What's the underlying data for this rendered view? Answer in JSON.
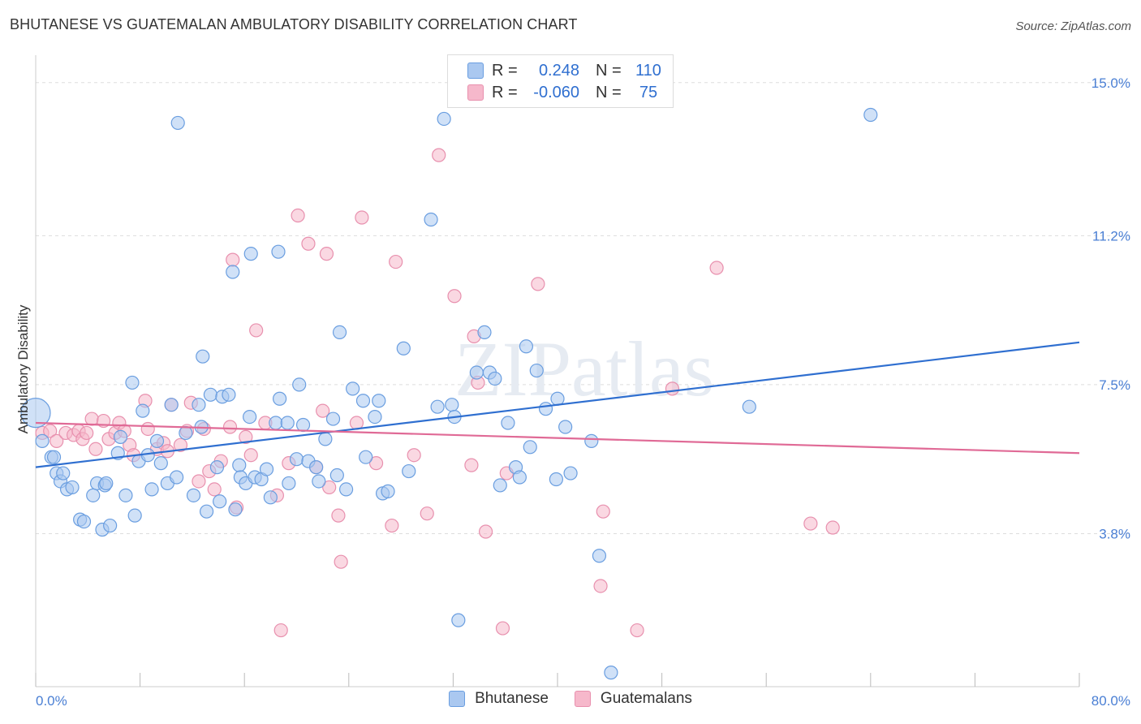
{
  "header": {
    "title": "BHUTANESE VS GUATEMALAN AMBULATORY DISABILITY CORRELATION CHART",
    "source": "Source: ZipAtlas.com"
  },
  "watermark": "ZIPatlas",
  "legend": {
    "r_label": "R =",
    "n_label": "N =",
    "rows": [
      {
        "r_value": "0.248",
        "n_value": "110"
      },
      {
        "r_value": "-0.060",
        "n_value": "75"
      }
    ]
  },
  "colors": {
    "blue_fill": "#aac8f0",
    "blue_stroke": "#6a9ee0",
    "blue_line": "#2f6fd0",
    "pink_fill": "#f6b8cb",
    "pink_stroke": "#e890ae",
    "pink_line": "#e06a96",
    "axis_label": "#4a7fd4",
    "grid": "#dddddd"
  },
  "chart_data": {
    "type": "scatter",
    "title": "BHUTANESE VS GUATEMALAN AMBULATORY DISABILITY CORRELATION CHART",
    "ylabel": "Ambulatory Disability",
    "xlabel": "",
    "xlim": [
      0,
      80
    ],
    "ylim": [
      0,
      15.5
    ],
    "x_tick_labels": [
      {
        "v": 0,
        "label": "0.0%"
      },
      {
        "v": 80,
        "label": "80.0%"
      }
    ],
    "y_tick_labels": [
      {
        "v": 3.8,
        "label": "3.8%"
      },
      {
        "v": 7.5,
        "label": "7.5%"
      },
      {
        "v": 11.2,
        "label": "11.2%"
      },
      {
        "v": 15.0,
        "label": "15.0%"
      }
    ],
    "grid": true,
    "legend_position": "bottom",
    "series": [
      {
        "name": "Bhutanese",
        "r": 0.248,
        "n": 110,
        "trend": [
          [
            0,
            5.45
          ],
          [
            80,
            8.55
          ]
        ],
        "points": [
          [
            0,
            6.8
          ],
          [
            0.5,
            6.1
          ],
          [
            1.2,
            5.7
          ],
          [
            1.4,
            5.7
          ],
          [
            1.6,
            5.3
          ],
          [
            1.9,
            5.1
          ],
          [
            2.1,
            5.3
          ],
          [
            2.4,
            4.9
          ],
          [
            2.8,
            4.95
          ],
          [
            3.4,
            4.15
          ],
          [
            3.7,
            4.1
          ],
          [
            4.4,
            4.75
          ],
          [
            4.7,
            5.05
          ],
          [
            5.1,
            3.9
          ],
          [
            5.3,
            5.0
          ],
          [
            5.4,
            5.05
          ],
          [
            5.7,
            4.0
          ],
          [
            6.3,
            5.8
          ],
          [
            6.5,
            6.2
          ],
          [
            6.9,
            4.75
          ],
          [
            7.4,
            7.55
          ],
          [
            7.6,
            4.25
          ],
          [
            7.9,
            5.6
          ],
          [
            8.2,
            6.85
          ],
          [
            8.6,
            5.75
          ],
          [
            8.9,
            4.9
          ],
          [
            9.3,
            6.1
          ],
          [
            9.6,
            5.55
          ],
          [
            10.1,
            5.05
          ],
          [
            10.4,
            7.0
          ],
          [
            10.8,
            5.2
          ],
          [
            10.9,
            14.0
          ],
          [
            11.5,
            6.3
          ],
          [
            12.1,
            4.75
          ],
          [
            12.5,
            7.0
          ],
          [
            12.7,
            6.45
          ],
          [
            12.8,
            8.2
          ],
          [
            13.1,
            4.35
          ],
          [
            13.4,
            7.25
          ],
          [
            13.9,
            5.45
          ],
          [
            14.1,
            4.6
          ],
          [
            14.3,
            7.2
          ],
          [
            14.8,
            7.25
          ],
          [
            15.1,
            10.3
          ],
          [
            15.3,
            4.4
          ],
          [
            15.6,
            5.5
          ],
          [
            15.7,
            5.2
          ],
          [
            16.1,
            5.05
          ],
          [
            16.4,
            6.7
          ],
          [
            16.5,
            10.75
          ],
          [
            16.8,
            5.2
          ],
          [
            17.3,
            5.15
          ],
          [
            17.7,
            5.4
          ],
          [
            18.0,
            4.7
          ],
          [
            18.4,
            6.55
          ],
          [
            18.6,
            10.8
          ],
          [
            18.7,
            7.15
          ],
          [
            19.3,
            6.55
          ],
          [
            19.4,
            5.05
          ],
          [
            20.0,
            5.65
          ],
          [
            20.2,
            7.5
          ],
          [
            20.5,
            6.5
          ],
          [
            20.9,
            5.6
          ],
          [
            21.5,
            5.45
          ],
          [
            21.7,
            5.1
          ],
          [
            22.2,
            6.15
          ],
          [
            22.8,
            6.65
          ],
          [
            23.1,
            5.25
          ],
          [
            23.3,
            8.8
          ],
          [
            23.8,
            4.9
          ],
          [
            24.3,
            7.4
          ],
          [
            25.1,
            7.1
          ],
          [
            25.3,
            5.7
          ],
          [
            26.0,
            6.7
          ],
          [
            26.3,
            7.1
          ],
          [
            26.6,
            4.8
          ],
          [
            27.0,
            4.85
          ],
          [
            28.2,
            8.4
          ],
          [
            28.6,
            5.35
          ],
          [
            30.3,
            11.6
          ],
          [
            30.8,
            6.95
          ],
          [
            31.3,
            14.1
          ],
          [
            31.9,
            7.0
          ],
          [
            32.1,
            6.7
          ],
          [
            32.4,
            1.65
          ],
          [
            33.8,
            7.8
          ],
          [
            34.4,
            8.8
          ],
          [
            34.8,
            7.8
          ],
          [
            35.2,
            7.65
          ],
          [
            35.6,
            5.0
          ],
          [
            36.2,
            6.55
          ],
          [
            36.8,
            5.45
          ],
          [
            37.1,
            5.2
          ],
          [
            37.6,
            8.45
          ],
          [
            37.9,
            5.95
          ],
          [
            38.4,
            7.85
          ],
          [
            39.1,
            6.9
          ],
          [
            39.9,
            5.15
          ],
          [
            40.0,
            7.15
          ],
          [
            40.6,
            6.45
          ],
          [
            41.0,
            5.3
          ],
          [
            42.6,
            6.1
          ],
          [
            43.2,
            3.25
          ],
          [
            44.1,
            0.35
          ],
          [
            54.7,
            6.95
          ],
          [
            64.0,
            14.2
          ]
        ]
      },
      {
        "name": "Guatemalans",
        "r": -0.06,
        "n": 75,
        "trend": [
          [
            0,
            6.55
          ],
          [
            80,
            5.8
          ]
        ],
        "points": [
          [
            0.5,
            6.3
          ],
          [
            1.1,
            6.35
          ],
          [
            1.6,
            6.1
          ],
          [
            2.3,
            6.3
          ],
          [
            2.9,
            6.25
          ],
          [
            3.3,
            6.35
          ],
          [
            3.6,
            6.15
          ],
          [
            3.9,
            6.3
          ],
          [
            4.3,
            6.65
          ],
          [
            4.6,
            5.9
          ],
          [
            5.2,
            6.6
          ],
          [
            5.6,
            6.15
          ],
          [
            6.1,
            6.3
          ],
          [
            6.4,
            6.55
          ],
          [
            6.8,
            6.35
          ],
          [
            7.2,
            6.0
          ],
          [
            7.5,
            5.75
          ],
          [
            8.4,
            7.1
          ],
          [
            8.6,
            6.4
          ],
          [
            9.3,
            5.9
          ],
          [
            9.8,
            6.05
          ],
          [
            10.1,
            5.85
          ],
          [
            10.4,
            7.0
          ],
          [
            11.1,
            6.0
          ],
          [
            11.6,
            6.35
          ],
          [
            11.9,
            7.05
          ],
          [
            12.5,
            5.1
          ],
          [
            12.9,
            6.4
          ],
          [
            13.3,
            5.35
          ],
          [
            13.7,
            4.9
          ],
          [
            14.2,
            5.6
          ],
          [
            14.9,
            6.45
          ],
          [
            15.1,
            10.6
          ],
          [
            15.4,
            4.45
          ],
          [
            16.1,
            6.2
          ],
          [
            16.5,
            5.75
          ],
          [
            16.9,
            8.85
          ],
          [
            17.6,
            6.55
          ],
          [
            18.5,
            4.75
          ],
          [
            18.8,
            1.4
          ],
          [
            19.4,
            5.55
          ],
          [
            20.1,
            11.7
          ],
          [
            20.9,
            11.0
          ],
          [
            21.5,
            5.45
          ],
          [
            22.0,
            6.85
          ],
          [
            22.3,
            10.75
          ],
          [
            22.5,
            4.95
          ],
          [
            23.2,
            4.25
          ],
          [
            23.4,
            3.1
          ],
          [
            24.6,
            6.55
          ],
          [
            25.0,
            11.65
          ],
          [
            26.1,
            5.55
          ],
          [
            27.3,
            4.0
          ],
          [
            27.6,
            10.55
          ],
          [
            29.0,
            5.75
          ],
          [
            30.0,
            4.3
          ],
          [
            30.9,
            13.2
          ],
          [
            32.1,
            9.7
          ],
          [
            33.4,
            5.5
          ],
          [
            33.6,
            8.7
          ],
          [
            33.9,
            7.55
          ],
          [
            34.5,
            3.85
          ],
          [
            35.8,
            1.45
          ],
          [
            36.1,
            5.3
          ],
          [
            38.5,
            10.0
          ],
          [
            43.3,
            2.5
          ],
          [
            43.5,
            4.35
          ],
          [
            46.1,
            1.4
          ],
          [
            48.8,
            7.4
          ],
          [
            52.2,
            10.4
          ],
          [
            59.4,
            4.05
          ],
          [
            61.1,
            3.95
          ]
        ]
      }
    ]
  }
}
